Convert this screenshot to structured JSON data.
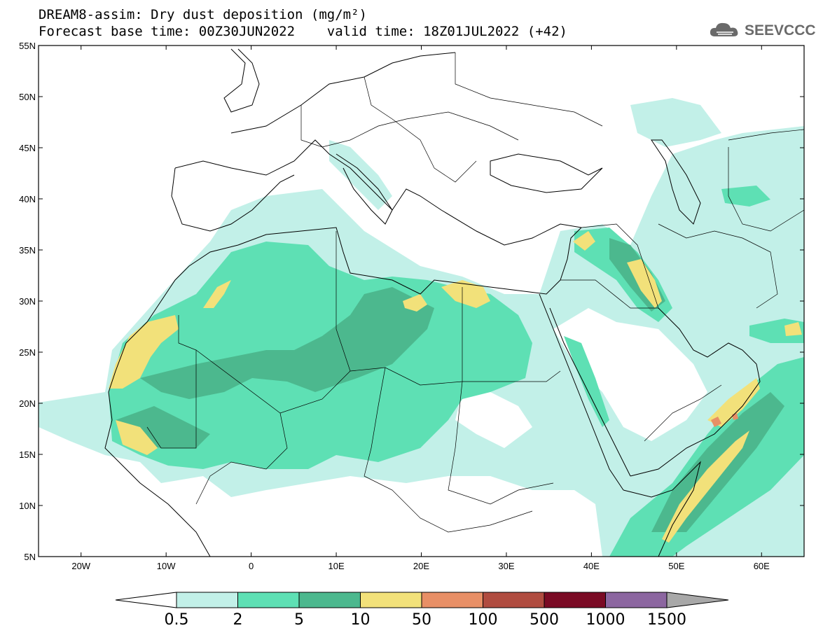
{
  "header": {
    "title_line1": "DREAM8-assim: Dry dust deposition (mg/m²)",
    "title_line2": "Forecast base time: 00Z30JUN2022    valid time: 18Z01JUL2022 (+42)",
    "logo_text": "SEEVCCC"
  },
  "map": {
    "lat_labels": [
      "55N",
      "50N",
      "45N",
      "40N",
      "35N",
      "30N",
      "25N",
      "20N",
      "15N",
      "10N",
      "5N"
    ],
    "lon_labels": [
      "20W",
      "10W",
      "0",
      "10E",
      "20E",
      "30E",
      "40E",
      "50E",
      "60E"
    ],
    "lat_range": [
      5,
      55
    ],
    "lon_range": [
      -25,
      65
    ]
  },
  "legend": {
    "labels": [
      "0.5",
      "2",
      "5",
      "10",
      "50",
      "100",
      "500",
      "1000",
      "1500"
    ],
    "colors": [
      "#c2f0e8",
      "#5ee0b4",
      "#4cb88e",
      "#f2e17a",
      "#e88f66",
      "#b04c40",
      "#7a0a24",
      "#8c66a0",
      "#a8a8a8"
    ]
  }
}
